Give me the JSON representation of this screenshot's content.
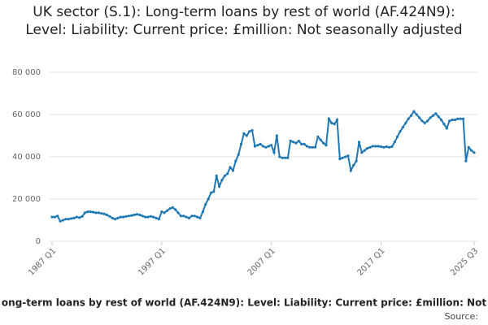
{
  "chart_data": {
    "type": "line",
    "title": "UK sector (S.1): Long-term loans by rest of world (AF.424N9): Level: Liability: Current price: £million: Not seasonally adjusted",
    "footer": "ong-term loans by rest of world (AF.424N9): Level: Liability: Current price: £million: Not",
    "source": "Source:",
    "color": "#1f78b4",
    "grid": true,
    "ylim": [
      0,
      80000
    ],
    "yticks": [
      0,
      {
        "value": 20000,
        "label": "20 000"
      },
      {
        "value": 40000,
        "label": "40 000"
      },
      {
        "value": 60000,
        "label": "60 000"
      },
      {
        "value": 80000,
        "label": "80 000"
      }
    ],
    "categories": [
      "1987 Q1",
      null,
      null,
      null,
      null,
      null,
      null,
      null,
      null,
      null,
      null,
      null,
      null,
      null,
      null,
      null,
      null,
      null,
      null,
      null,
      null,
      null,
      null,
      null,
      null,
      null,
      null,
      null,
      null,
      null,
      null,
      null,
      null,
      null,
      null,
      null,
      null,
      null,
      null,
      null,
      "1997 Q1",
      null,
      null,
      null,
      null,
      null,
      null,
      null,
      null,
      null,
      null,
      null,
      null,
      null,
      null,
      null,
      null,
      null,
      null,
      null,
      null,
      null,
      null,
      null,
      null,
      null,
      null,
      null,
      null,
      null,
      null,
      null,
      null,
      null,
      null,
      null,
      null,
      null,
      null,
      null,
      "2007 Q1",
      null,
      null,
      null,
      null,
      null,
      null,
      null,
      null,
      null,
      null,
      null,
      null,
      null,
      null,
      null,
      null,
      null,
      null,
      null,
      null,
      null,
      null,
      null,
      null,
      null,
      null,
      null,
      null,
      null,
      null,
      null,
      null,
      null,
      null,
      null,
      null,
      null,
      null,
      null,
      "2017 Q1",
      null,
      null,
      null,
      null,
      null,
      null,
      null,
      null,
      null,
      null,
      null,
      null,
      null,
      null,
      null,
      null,
      null,
      null,
      null,
      null,
      null,
      null,
      null,
      null,
      null,
      null,
      null,
      null,
      null,
      null,
      null,
      null,
      null,
      "2025 Q3"
    ],
    "values": [
      11500,
      11500,
      12000,
      9500,
      10000,
      10500,
      10500,
      10800,
      11000,
      11500,
      11200,
      11800,
      13500,
      14000,
      14000,
      13800,
      13500,
      13500,
      13200,
      13000,
      12500,
      11800,
      11000,
      10500,
      11000,
      11500,
      11500,
      11800,
      12000,
      12200,
      12500,
      12800,
      12500,
      12000,
      11500,
      11500,
      11800,
      11500,
      11000,
      10500,
      14000,
      13500,
      14500,
      15500,
      16000,
      15000,
      13500,
      12000,
      12000,
      11500,
      11000,
      12000,
      12000,
      11500,
      11000,
      14000,
      17500,
      20000,
      23000,
      23500,
      31000,
      26000,
      29000,
      31000,
      32000,
      35000,
      33500,
      38000,
      41000,
      46000,
      51000,
      50000,
      52000,
      52500,
      45000,
      45500,
      46000,
      45000,
      44500,
      45000,
      45500,
      42000,
      50000,
      40000,
      39500,
      39500,
      39500,
      47500,
      47000,
      46500,
      47500,
      46000,
      46000,
      45000,
      44500,
      44500,
      44500,
      49500,
      48000,
      46500,
      45500,
      58000,
      56000,
      55500,
      57500,
      39000,
      39500,
      40000,
      40500,
      33500,
      36000,
      38000,
      47000,
      42000,
      43000,
      44000,
      44500,
      45000,
      45000,
      45000,
      44800,
      44500,
      44800,
      44500,
      44800,
      47000,
      49500,
      52000,
      54000,
      56000,
      58000,
      59500,
      61500,
      60000,
      58500,
      57000,
      56000,
      57000,
      58500,
      59500,
      60500,
      59000,
      57500,
      55500,
      53500,
      57000,
      57500,
      57500,
      58000,
      58000,
      58000,
      38000,
      44500,
      43000,
      42000
    ]
  }
}
